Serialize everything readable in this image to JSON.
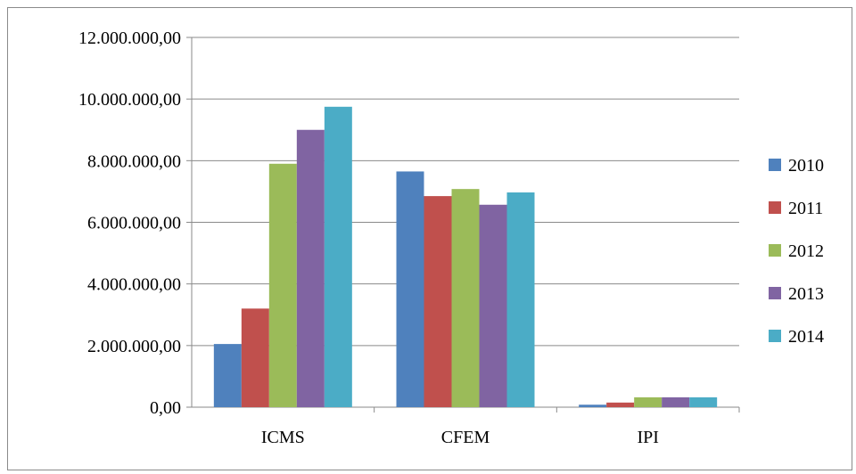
{
  "chart_data": {
    "type": "bar",
    "title": "",
    "xlabel": "",
    "ylabel": "",
    "categories": [
      "ICMS",
      "CFEM",
      "IPI"
    ],
    "series": [
      {
        "name": "2010",
        "color": "#4F81BD",
        "values": [
          2050000,
          7650000,
          80000
        ]
      },
      {
        "name": "2011",
        "color": "#C0504D",
        "values": [
          3200000,
          6850000,
          150000
        ]
      },
      {
        "name": "2012",
        "color": "#9BBB59",
        "values": [
          7900000,
          7080000,
          320000
        ]
      },
      {
        "name": "2013",
        "color": "#8064A2",
        "values": [
          9000000,
          6570000,
          320000
        ]
      },
      {
        "name": "2014",
        "color": "#4BACC6",
        "values": [
          9750000,
          6970000,
          320000
        ]
      }
    ],
    "ylim": [
      0,
      12000000
    ],
    "yticks": [
      0,
      2000000,
      4000000,
      6000000,
      8000000,
      10000000,
      12000000
    ],
    "ytick_labels": [
      "0,00",
      "2.000.000,00",
      "4.000.000,00",
      "6.000.000,00",
      "8.000.000,00",
      "10.000.000,00",
      "12.000.000,00"
    ],
    "grid": true,
    "legend_position": "right"
  }
}
